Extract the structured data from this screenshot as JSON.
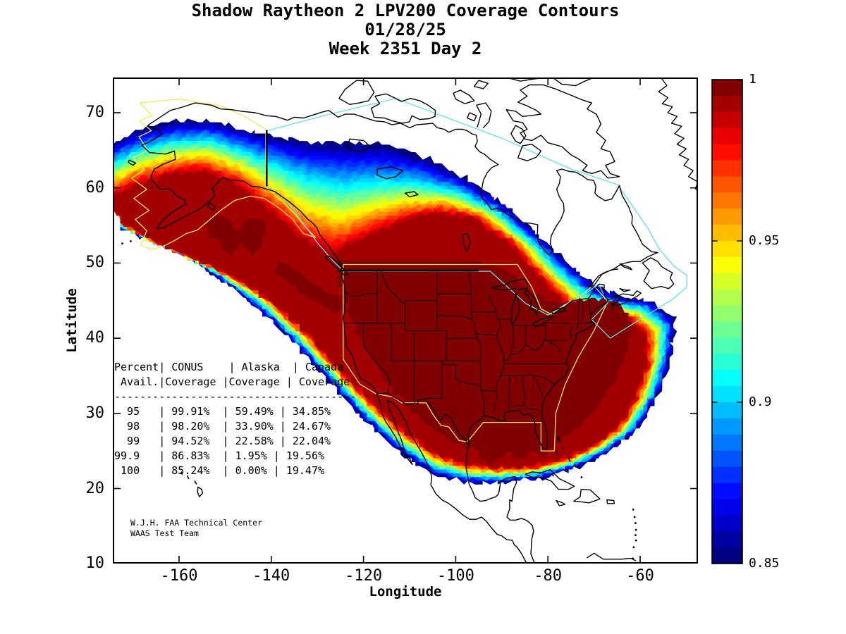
{
  "title": {
    "line1": "Shadow Raytheon 2 LPV200 Coverage Contours",
    "line2": "01/28/25",
    "line3": "Week 2351 Day 2"
  },
  "axes": {
    "xlabel": "Longitude",
    "ylabel": "Latitude",
    "x_ticks": [
      -160,
      -140,
      -120,
      -100,
      -80,
      -60
    ],
    "y_ticks": [
      70,
      60,
      50,
      40,
      30,
      20,
      10
    ],
    "x_range": [
      -174.4,
      -47.5
    ],
    "y_range": [
      10,
      74.7
    ]
  },
  "colorbar": {
    "tick_labels": [
      "1",
      "0.95",
      "0.9",
      "0.85"
    ],
    "tick_values": [
      1,
      0.95,
      0.9,
      0.85
    ],
    "min": 0.85,
    "max": 1.0,
    "steps": 30,
    "colormap": "jet"
  },
  "coverage_table": {
    "header_line1": "Percent| CONUS    | Alaska  | Canada",
    "header_line2": " Avail.|Coverage |Coverage | Coverage",
    "separator": "--------------------------------------",
    "columns": [
      "Percent Avail.",
      "CONUS Coverage",
      "Alaska Coverage",
      "Canada Coverage"
    ],
    "rows": [
      [
        "95",
        "99.91%",
        "59.49%",
        "34.85%"
      ],
      [
        "98",
        "98.20%",
        "33.90%",
        "24.67%"
      ],
      [
        "99",
        "94.52%",
        "22.58%",
        "22.04%"
      ],
      [
        "99.9",
        "86.83%",
        "1.95%",
        "19.56%"
      ],
      [
        "100",
        "85.24%",
        "0.00%",
        "19.47%"
      ]
    ]
  },
  "annotations": {
    "credit_line1": "W.J.H. FAA Technical Center",
    "credit_line2": "WAAS Test Team"
  },
  "colors": {
    "background": "#ffffff",
    "outline_black": "#000000",
    "conus_service_boundary_yellow": "#f0ec58",
    "canada_service_boundary_cyan": "#5fe0ee",
    "colormap_low": "#000080",
    "colormap_high": "#800000"
  },
  "chart_data": {
    "type": "heatmap",
    "title": "Shadow Raytheon 2 LPV200 Coverage Contours",
    "subtitle": "01/28/25",
    "week_label": "Week 2351 Day 2",
    "xlabel": "Longitude",
    "ylabel": "Latitude",
    "xlim": [
      -174.4,
      -47.5
    ],
    "ylim": [
      10,
      74.7
    ],
    "x_tick_labels": [
      "-160",
      "-140",
      "-120",
      "-100",
      "-80",
      "-60"
    ],
    "y_tick_labels": [
      "70",
      "60",
      "50",
      "40",
      "30",
      "20",
      "10"
    ],
    "colorbar": {
      "range": [
        0.85,
        1.0
      ],
      "tick_labels": [
        "1",
        "0.95",
        "0.9",
        "0.85"
      ],
      "colormap": "jet",
      "discrete_steps": 30
    },
    "contour_quantity": "LPV200 coverage availability",
    "contour_level_min": 0.85,
    "contour_level_max": 1.0,
    "contour_step": 0.005,
    "availability_table": {
      "columns": [
        "Percent Avail.",
        "CONUS Coverage",
        "Alaska Coverage",
        "Canada Coverage"
      ],
      "rows": [
        [
          95,
          "99.91%",
          "59.49%",
          "34.85%"
        ],
        [
          98,
          "98.20%",
          "33.90%",
          "24.67%"
        ],
        [
          99,
          "94.52%",
          "22.58%",
          "22.04%"
        ],
        [
          99.9,
          "86.83%",
          "1.95%",
          "19.56%"
        ],
        [
          100,
          "85.24%",
          "0.00%",
          "19.47%"
        ]
      ]
    }
  }
}
